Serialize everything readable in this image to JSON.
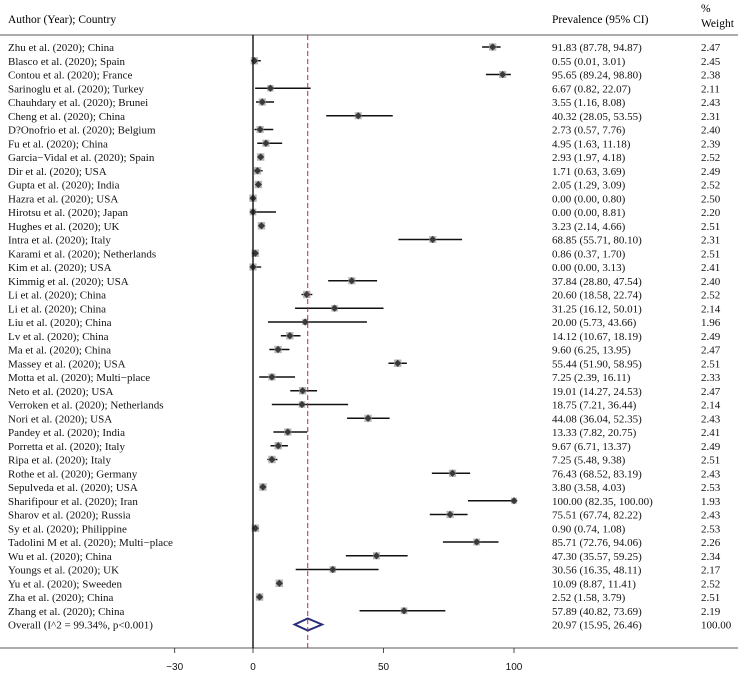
{
  "chart_data": {
    "type": "forest",
    "headers": {
      "study": "Author (Year); Country",
      "ci": "Prevalence (95% CI)",
      "weight_line1": "%",
      "weight_line2": "Weight"
    },
    "xlim": [
      -30,
      100
    ],
    "ticks": [
      -30,
      0,
      50,
      100
    ],
    "null_line": 0,
    "pooled_line": 20.97,
    "studies": [
      {
        "label": "Zhu et al. (2020);  China",
        "est": 91.83,
        "lo": 87.78,
        "hi": 94.87,
        "ci": "91.83 (87.78, 94.87)",
        "weight": "2.47"
      },
      {
        "label": "Blasco et al. (2020);  Spain",
        "est": 0.55,
        "lo": 0.01,
        "hi": 3.01,
        "ci": "0.55 (0.01, 3.01)",
        "weight": "2.45"
      },
      {
        "label": "Contou et al. (2020);  France",
        "est": 95.65,
        "lo": 89.24,
        "hi": 98.8,
        "ci": "95.65 (89.24, 98.80)",
        "weight": "2.38"
      },
      {
        "label": "Sarinoglu et al. (2020);  Turkey",
        "est": 6.67,
        "lo": 0.82,
        "hi": 22.07,
        "ci": "6.67 (0.82, 22.07)",
        "weight": "2.11"
      },
      {
        "label": "Chauhdary et al. (2020);  Brunei",
        "est": 3.55,
        "lo": 1.16,
        "hi": 8.08,
        "ci": "3.55 (1.16, 8.08)",
        "weight": "2.43"
      },
      {
        "label": "Cheng et al. (2020);  China",
        "est": 40.32,
        "lo": 28.05,
        "hi": 53.55,
        "ci": "40.32 (28.05, 53.55)",
        "weight": "2.31"
      },
      {
        "label": "D?Onofrio et al. (2020);  Belgium",
        "est": 2.73,
        "lo": 0.57,
        "hi": 7.76,
        "ci": "2.73 (0.57, 7.76)",
        "weight": "2.40"
      },
      {
        "label": "Fu et al. (2020);  China",
        "est": 4.95,
        "lo": 1.63,
        "hi": 11.18,
        "ci": "4.95 (1.63, 11.18)",
        "weight": "2.39"
      },
      {
        "label": "Garcia−Vidal et al. (2020);  Spain",
        "est": 2.93,
        "lo": 1.97,
        "hi": 4.18,
        "ci": "2.93 (1.97, 4.18)",
        "weight": "2.52"
      },
      {
        "label": "Dir et al. (2020);  USA",
        "est": 1.71,
        "lo": 0.63,
        "hi": 3.69,
        "ci": "1.71 (0.63, 3.69)",
        "weight": "2.49"
      },
      {
        "label": "Gupta et al. (2020);  India",
        "est": 2.05,
        "lo": 1.29,
        "hi": 3.09,
        "ci": "2.05 (1.29, 3.09)",
        "weight": "2.52"
      },
      {
        "label": "Hazra et al. (2020);  USA",
        "est": 0.0,
        "lo": 0.0,
        "hi": 0.8,
        "ci": "0.00 (0.00, 0.80)",
        "weight": "2.50"
      },
      {
        "label": "Hirotsu et al. (2020);  Japan",
        "est": 0.0,
        "lo": 0.0,
        "hi": 8.81,
        "ci": "0.00 (0.00, 8.81)",
        "weight": "2.20"
      },
      {
        "label": "Hughes et al. (2020);  UK",
        "est": 3.23,
        "lo": 2.14,
        "hi": 4.66,
        "ci": "3.23 (2.14, 4.66)",
        "weight": "2.51"
      },
      {
        "label": "Intra et al. (2020);  Italy",
        "est": 68.85,
        "lo": 55.71,
        "hi": 80.1,
        "ci": "68.85 (55.71, 80.10)",
        "weight": "2.31"
      },
      {
        "label": "Karami et al. (2020);  Netherlands",
        "est": 0.86,
        "lo": 0.37,
        "hi": 1.7,
        "ci": "0.86 (0.37, 1.70)",
        "weight": "2.51"
      },
      {
        "label": "Kim et al. (2020);  USA",
        "est": 0.0,
        "lo": 0.0,
        "hi": 3.13,
        "ci": "0.00 (0.00, 3.13)",
        "weight": "2.41"
      },
      {
        "label": "Kimmig et al. (2020);  USA",
        "est": 37.84,
        "lo": 28.8,
        "hi": 47.54,
        "ci": "37.84 (28.80, 47.54)",
        "weight": "2.40"
      },
      {
        "label": "Li et al. (2020);  China",
        "est": 20.6,
        "lo": 18.58,
        "hi": 22.74,
        "ci": "20.60 (18.58, 22.74)",
        "weight": "2.52"
      },
      {
        "label": "Li et al. (2020);  China",
        "est": 31.25,
        "lo": 16.12,
        "hi": 50.01,
        "ci": "31.25 (16.12, 50.01)",
        "weight": "2.14"
      },
      {
        "label": "Liu et al. (2020);  China",
        "est": 20.0,
        "lo": 5.73,
        "hi": 43.66,
        "ci": "20.00 (5.73, 43.66)",
        "weight": "1.96"
      },
      {
        "label": "Lv et al. (2020);  China",
        "est": 14.12,
        "lo": 10.67,
        "hi": 18.19,
        "ci": "14.12 (10.67, 18.19)",
        "weight": "2.49"
      },
      {
        "label": "Ma et al. (2020);  China",
        "est": 9.6,
        "lo": 6.25,
        "hi": 13.95,
        "ci": "9.60 (6.25, 13.95)",
        "weight": "2.47"
      },
      {
        "label": "Massey et al. (2020);  USA",
        "est": 55.44,
        "lo": 51.9,
        "hi": 58.95,
        "ci": "55.44 (51.90, 58.95)",
        "weight": "2.51"
      },
      {
        "label": "Motta et al. (2020);  Multi−place",
        "est": 7.25,
        "lo": 2.39,
        "hi": 16.11,
        "ci": "7.25 (2.39, 16.11)",
        "weight": "2.33"
      },
      {
        "label": "Neto et al. (2020);  USA",
        "est": 19.01,
        "lo": 14.27,
        "hi": 24.53,
        "ci": "19.01 (14.27, 24.53)",
        "weight": "2.47"
      },
      {
        "label": "Verroken et al. (2020);  Netherlands",
        "est": 18.75,
        "lo": 7.21,
        "hi": 36.44,
        "ci": "18.75 (7.21, 36.44)",
        "weight": "2.14"
      },
      {
        "label": "Nori et al. (2020);  USA",
        "est": 44.08,
        "lo": 36.04,
        "hi": 52.35,
        "ci": "44.08 (36.04, 52.35)",
        "weight": "2.43"
      },
      {
        "label": "Pandey et al. (2020);  India",
        "est": 13.33,
        "lo": 7.82,
        "hi": 20.75,
        "ci": "13.33 (7.82, 20.75)",
        "weight": "2.41"
      },
      {
        "label": "Porretta et al. (2020);  Italy",
        "est": 9.67,
        "lo": 6.71,
        "hi": 13.37,
        "ci": "9.67 (6.71, 13.37)",
        "weight": "2.49"
      },
      {
        "label": "Ripa et al. (2020);  Italy",
        "est": 7.25,
        "lo": 5.48,
        "hi": 9.38,
        "ci": "7.25 (5.48, 9.38)",
        "weight": "2.51"
      },
      {
        "label": "Rothe et al. (2020);  Germany",
        "est": 76.43,
        "lo": 68.52,
        "hi": 83.19,
        "ci": "76.43 (68.52, 83.19)",
        "weight": "2.43"
      },
      {
        "label": "Sepulveda et al. (2020);  USA",
        "est": 3.8,
        "lo": 3.58,
        "hi": 4.03,
        "ci": "3.80 (3.58, 4.03)",
        "weight": "2.53"
      },
      {
        "label": "Sharifipour et al. (2020);  Iran",
        "est": 100.0,
        "lo": 82.35,
        "hi": 100.0,
        "ci": "100.00 (82.35, 100.00)",
        "weight": "1.93"
      },
      {
        "label": "Sharov et al. (2020);  Russia",
        "est": 75.51,
        "lo": 67.74,
        "hi": 82.22,
        "ci": "75.51 (67.74, 82.22)",
        "weight": "2.43"
      },
      {
        "label": "Sy et al. (2020);  Philippine",
        "est": 0.9,
        "lo": 0.74,
        "hi": 1.08,
        "ci": "0.90 (0.74, 1.08)",
        "weight": "2.53"
      },
      {
        "label": "Tadolini M et al. (2020);  Multi−place",
        "est": 85.71,
        "lo": 72.76,
        "hi": 94.06,
        "ci": "85.71 (72.76, 94.06)",
        "weight": "2.26"
      },
      {
        "label": "Wu et al. (2020);  China",
        "est": 47.3,
        "lo": 35.57,
        "hi": 59.25,
        "ci": "47.30 (35.57, 59.25)",
        "weight": "2.34"
      },
      {
        "label": "Youngs et al. (2020);  UK",
        "est": 30.56,
        "lo": 16.35,
        "hi": 48.11,
        "ci": "30.56 (16.35, 48.11)",
        "weight": "2.17"
      },
      {
        "label": "Yu et al. (2020);  Sweeden",
        "est": 10.09,
        "lo": 8.87,
        "hi": 11.41,
        "ci": "10.09 (8.87, 11.41)",
        "weight": "2.52"
      },
      {
        "label": "Zha et al. (2020);  China",
        "est": 2.52,
        "lo": 1.58,
        "hi": 3.79,
        "ci": "2.52 (1.58, 3.79)",
        "weight": "2.51"
      },
      {
        "label": "Zhang et al. (2020);  China",
        "est": 57.89,
        "lo": 40.82,
        "hi": 73.69,
        "ci": "57.89 (40.82, 73.69)",
        "weight": "2.19"
      }
    ],
    "overall": {
      "label": "Overall  (I^2 = 99.34%, p<0.001)",
      "est": 20.97,
      "lo": 15.95,
      "hi": 26.46,
      "ci": "20.97 (15.95, 26.46)",
      "weight": "100.00"
    },
    "colors": {
      "marker": "#3a3a3a",
      "box": "#b8b8b8",
      "pooled_line": "#b03030",
      "diamond": "#2a2f7a"
    }
  }
}
